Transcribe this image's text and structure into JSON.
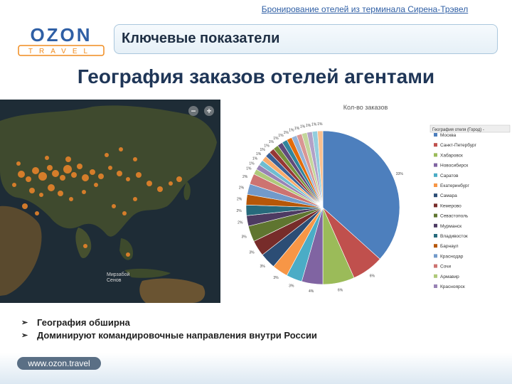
{
  "header": {
    "top_link": "Бронирование отелей из терминала Сирена-Трэвел",
    "logo_word": "OZON",
    "logo_sub": "TRAVEL",
    "section_title": "Ключевые показатели"
  },
  "slide": {
    "title": "География заказов отелей агентами"
  },
  "map": {
    "zoom_out": "−",
    "zoom_in": "+",
    "credit_line1": "Мирзабой",
    "credit_line2": "Сенов"
  },
  "colors": {
    "brand_blue": "#2f5fa5",
    "logo_orange": "#f08c1e",
    "map_dot": "#f0872a"
  },
  "chart_data": {
    "type": "pie",
    "title": "Кол-во заказов",
    "legend_title": "География отеля (Город) -",
    "legend_placement": "right",
    "slices": [
      {
        "label": "Москва",
        "value": 33,
        "color": "#4d7fbd",
        "shown": "33%"
      },
      {
        "label": "Санкт-Петербург",
        "value": 6,
        "color": "#c0504d",
        "shown": "6%"
      },
      {
        "label": "Хабаровск",
        "value": 6,
        "color": "#9bbb59",
        "shown": "6%"
      },
      {
        "label": "Новосибирск",
        "value": 4,
        "color": "#8064a2",
        "shown": "4%"
      },
      {
        "label": "Саратов",
        "value": 3,
        "color": "#4bacc6",
        "shown": "3%"
      },
      {
        "label": "Екатеринбург",
        "value": 3,
        "color": "#f79646",
        "shown": "3%"
      },
      {
        "label": "Самара",
        "value": 3,
        "color": "#2c4d75",
        "shown": "3%"
      },
      {
        "label": "Кемерово",
        "value": 3,
        "color": "#772c2a",
        "shown": "3%"
      },
      {
        "label": "Севастополь",
        "value": 3,
        "color": "#5f7530",
        "shown": "3%"
      },
      {
        "label": "Мурманск",
        "value": 2,
        "color": "#4d3b62",
        "shown": "2%"
      },
      {
        "label": "Владивосток",
        "value": 2,
        "color": "#276a7c",
        "shown": "2%"
      },
      {
        "label": "Барнаул",
        "value": 2,
        "color": "#b65708",
        "shown": "2%"
      },
      {
        "label": "Краснодар",
        "value": 2,
        "color": "#729aca",
        "shown": "2%"
      },
      {
        "label": "Сочи",
        "value": 2,
        "color": "#cd7371",
        "shown": "2%"
      },
      {
        "label": "Армавир",
        "value": 1,
        "color": "#afc97a",
        "shown": "1%"
      },
      {
        "label": "Красноярск",
        "value": 1,
        "color": "#9983b5",
        "shown": "1%"
      },
      {
        "label": "",
        "value": 1,
        "color": "#6fbdd1",
        "shown": "1%"
      },
      {
        "label": "",
        "value": 1,
        "color": "#f9ab6b",
        "shown": "1%"
      },
      {
        "label": "",
        "value": 1,
        "color": "#3a5f94",
        "shown": "1%"
      },
      {
        "label": "",
        "value": 1,
        "color": "#963735",
        "shown": "1%"
      },
      {
        "label": "",
        "value": 1,
        "color": "#77933c",
        "shown": "1%"
      },
      {
        "label": "",
        "value": 1,
        "color": "#604a7b",
        "shown": "1%"
      },
      {
        "label": "",
        "value": 1,
        "color": "#31859c",
        "shown": "1%"
      },
      {
        "label": "",
        "value": 1,
        "color": "#e46c0a",
        "shown": "1%"
      },
      {
        "label": "",
        "value": 1,
        "color": "#95b3d7",
        "shown": "1%"
      },
      {
        "label": "",
        "value": 1,
        "color": "#d99694",
        "shown": "1%"
      },
      {
        "label": "",
        "value": 1,
        "color": "#c3d69b",
        "shown": "1%"
      },
      {
        "label": "",
        "value": 1,
        "color": "#b2a1c7",
        "shown": "1%"
      },
      {
        "label": "",
        "value": 1,
        "color": "#93cddd",
        "shown": "1%"
      },
      {
        "label": "",
        "value": 1,
        "color": "#fac08f",
        "shown": "1%"
      }
    ]
  },
  "bullets": [
    "География обширна",
    "Доминируют командировочные направления внутри России"
  ],
  "footer": {
    "url": "www.ozon.travel"
  }
}
